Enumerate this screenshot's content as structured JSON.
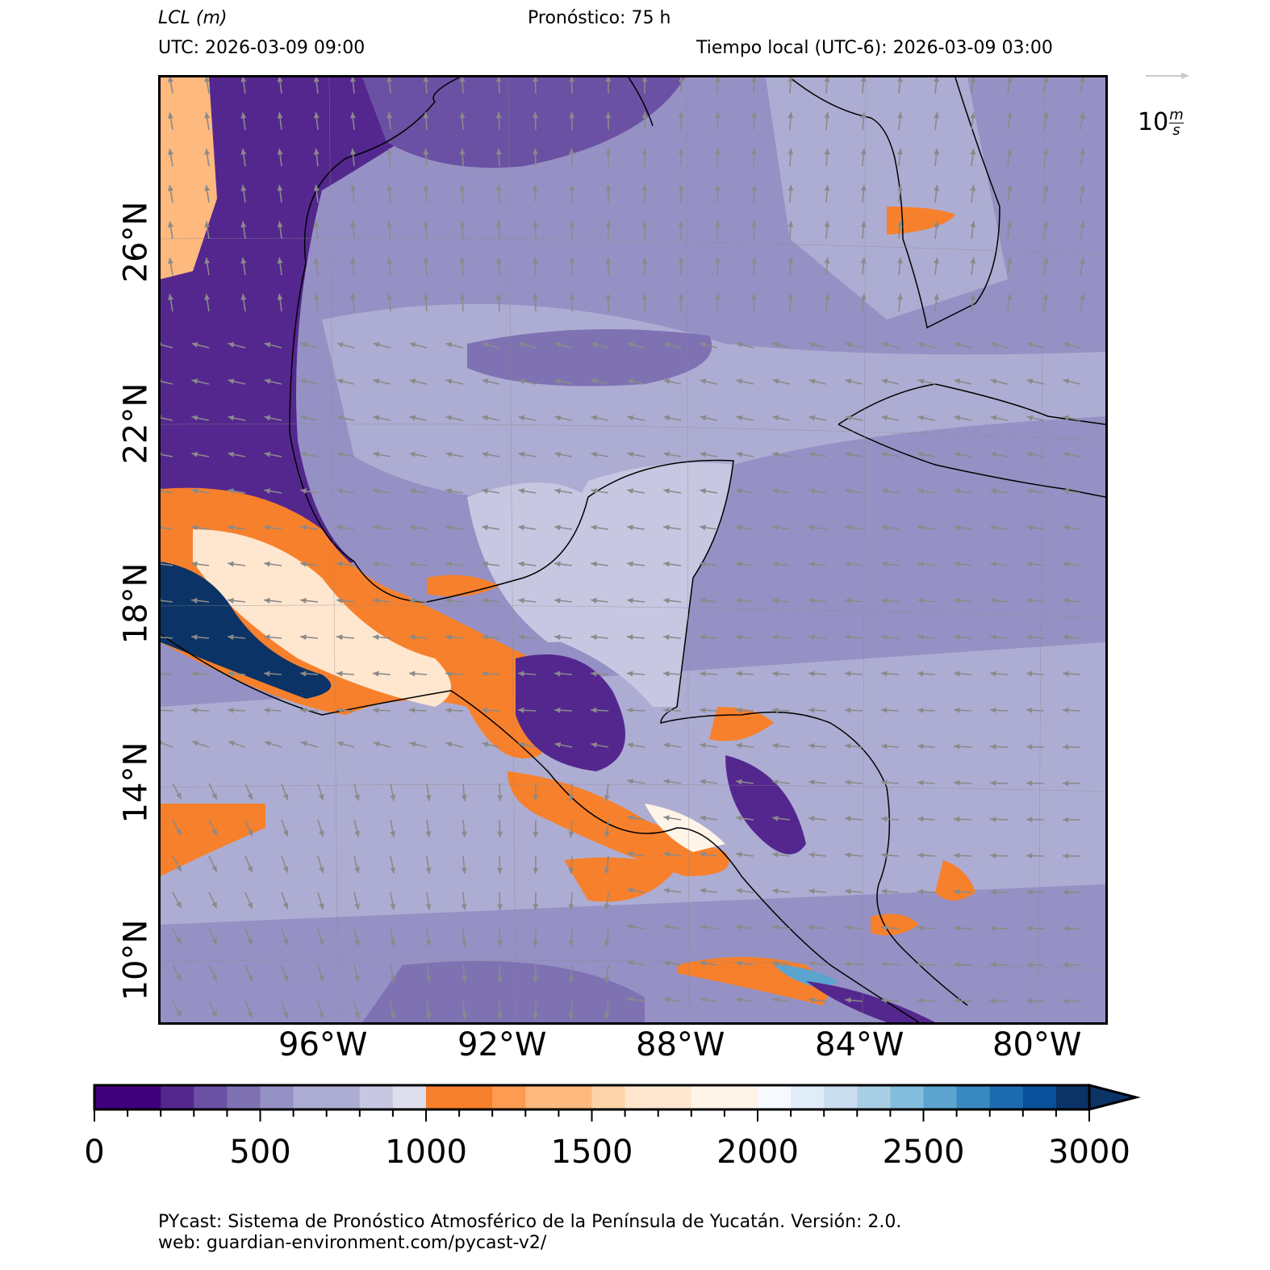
{
  "header": {
    "variable": "LCL",
    "units": "(m)",
    "forecast": "Pronóstico: 75 h",
    "utc": "UTC:  2026-03-09 09:00",
    "local": "Tiempo local (UTC-6): 2026-03-09 03:00"
  },
  "wind_key": {
    "value": "10",
    "unit_num": "m",
    "unit_den": "s"
  },
  "axes": {
    "lat_labels": [
      "26°N",
      "22°N",
      "18°N",
      "14°N",
      "10°N"
    ],
    "lon_labels": [
      "96°W",
      "92°W",
      "88°W",
      "84°W",
      "80°W"
    ]
  },
  "colorbar": {
    "tick_labels": [
      "0",
      "500",
      "1000",
      "1500",
      "2000",
      "2500",
      "3000"
    ],
    "range": [
      0,
      3000
    ],
    "extend": "max",
    "bounds": [
      0,
      200,
      300,
      400,
      500,
      600,
      800,
      900,
      1000,
      1200,
      1300,
      1500,
      1600,
      1800,
      2000,
      2100,
      2200,
      2300,
      2400,
      2500,
      2600,
      2700,
      2800,
      2900,
      3000
    ],
    "colors": [
      "#3f007d",
      "#54278f",
      "#6a51a3",
      "#7f72b3",
      "#9691c4",
      "#adadd3",
      "#c7c7e2",
      "#dedeed",
      "#f7802c",
      "#fd9b52",
      "#fdb97e",
      "#fdd4a9",
      "#fee6cf",
      "#fff4e8",
      "#f6faff",
      "#e0ecf8",
      "#cadef0",
      "#a9cfe4",
      "#84bcdb",
      "#5ca3d0",
      "#3788c1",
      "#1c6bb0",
      "#0a509b",
      "#0b3366"
    ],
    "over_color": "#0b3366"
  },
  "footer": {
    "line1": "PYcast: Sistema de Pronóstico Atmosférico de la Península de Yucatán. Versión: 2.0.",
    "line2": "web: guardian-environment.com/pycast-v2/"
  }
}
